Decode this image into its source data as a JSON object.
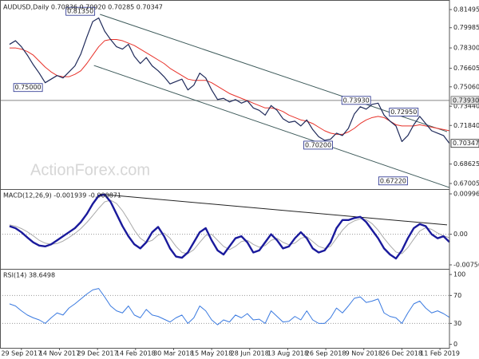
{
  "chart_data": [
    {
      "type": "line",
      "title": "AUDUSD,Daily  0.70836 0.70920 0.70285 0.70347",
      "watermark": "ActionForex.com",
      "x": [
        0,
        5,
        10,
        15,
        20,
        25,
        30,
        35,
        40,
        45,
        50,
        55,
        60,
        65,
        70,
        75,
        80,
        85,
        90,
        95,
        100,
        105,
        110,
        115,
        120,
        125,
        130,
        135,
        140,
        145,
        150,
        155,
        160,
        165,
        170,
        175,
        180,
        185,
        190,
        195,
        200,
        205,
        210,
        215,
        220,
        225,
        230,
        235,
        240,
        245,
        250,
        255,
        260,
        265,
        270,
        275,
        280,
        285,
        290,
        295,
        300,
        305,
        310,
        315,
        320,
        325,
        330,
        335,
        340,
        345,
        350,
        355,
        360,
        365,
        370
      ],
      "xlim": [
        -8,
        370
      ],
      "ylim": [
        0.6654,
        0.8216
      ],
      "yticks": [
        0.81495,
        0.79985,
        {
          "value": 0.783,
          "label": "0.78300"
        },
        0.76605,
        {
          "value": 0.7506,
          "label": "0.75060"
        },
        {
          "value": 0.7344,
          "label": "0.73440"
        },
        {
          "value": 0.7184,
          "label": "0.71840"
        },
        0.68625,
        0.67005
      ],
      "series": [
        {
          "name": "AUDUSD",
          "color": "#1f2a5a",
          "width": 1.2,
          "values": [
            0.786,
            0.789,
            0.784,
            0.777,
            0.769,
            0.762,
            0.754,
            0.757,
            0.76,
            0.758,
            0.763,
            0.768,
            0.778,
            0.792,
            0.805,
            0.808,
            0.797,
            0.79,
            0.784,
            0.782,
            0.786,
            0.776,
            0.77,
            0.775,
            0.768,
            0.764,
            0.759,
            0.753,
            0.755,
            0.757,
            0.748,
            0.752,
            0.762,
            0.758,
            0.748,
            0.74,
            0.741,
            0.738,
            0.74,
            0.737,
            0.739,
            0.733,
            0.731,
            0.727,
            0.735,
            0.731,
            0.724,
            0.721,
            0.722,
            0.718,
            0.723,
            0.715,
            0.709,
            0.706,
            0.707,
            0.712,
            0.71,
            0.716,
            0.728,
            0.734,
            0.732,
            0.736,
            0.737,
            0.727,
            0.722,
            0.718,
            0.705,
            0.71,
            0.719,
            0.726,
            0.72,
            0.714,
            0.712,
            0.71,
            0.70347
          ]
        },
        {
          "name": "MA",
          "color": "#e8322a",
          "width": 1,
          "values": [
            0.783,
            0.783,
            0.782,
            0.78,
            0.777,
            0.772,
            0.767,
            0.763,
            0.76,
            0.759,
            0.759,
            0.761,
            0.764,
            0.77,
            0.777,
            0.784,
            0.789,
            0.79,
            0.79,
            0.789,
            0.787,
            0.785,
            0.782,
            0.779,
            0.776,
            0.773,
            0.77,
            0.766,
            0.763,
            0.76,
            0.757,
            0.756,
            0.756,
            0.756,
            0.754,
            0.751,
            0.748,
            0.745,
            0.743,
            0.741,
            0.739,
            0.737,
            0.735,
            0.733,
            0.733,
            0.732,
            0.73,
            0.727,
            0.725,
            0.723,
            0.722,
            0.72,
            0.717,
            0.714,
            0.712,
            0.711,
            0.711,
            0.713,
            0.716,
            0.72,
            0.723,
            0.725,
            0.726,
            0.725,
            0.722,
            0.719,
            0.718,
            0.718,
            0.718,
            0.719,
            0.718,
            0.717,
            0.716,
            0.715,
            0.714
          ]
        }
      ],
      "trendlines": [
        {
          "x": [
            76,
            368
          ],
          "y": [
            0.811,
            0.7132
          ],
          "color": "#3d5a5a"
        },
        {
          "x": [
            71,
            370
          ],
          "y": [
            0.7684,
            0.6667
          ],
          "color": "#3d5a5a"
        }
      ],
      "hline": {
        "value": 0.7393,
        "label": "0.73930",
        "color": "#888888"
      },
      "last_label": {
        "value": 0.70347,
        "label": "0.70347"
      },
      "annotations": [
        {
          "x": 73,
          "value": 0.8135,
          "label": "0.81350"
        },
        {
          "x": 29,
          "value": 0.75,
          "label": "0.75000"
        },
        {
          "x": 305,
          "value": 0.7393,
          "label": "0.73930"
        },
        {
          "x": 345,
          "value": 0.7295,
          "label": "0.72950"
        },
        {
          "x": 273,
          "value": 0.702,
          "label": "0.70200"
        },
        {
          "x": 336,
          "value": 0.6722,
          "label": "0.67220"
        }
      ]
    },
    {
      "type": "line",
      "title": "MACD(12,26,9) -0.001939 -0.000871",
      "x": [
        0,
        5,
        10,
        15,
        20,
        25,
        30,
        35,
        40,
        45,
        50,
        55,
        60,
        65,
        70,
        75,
        80,
        85,
        90,
        95,
        100,
        105,
        110,
        115,
        120,
        125,
        130,
        135,
        140,
        145,
        150,
        155,
        160,
        165,
        170,
        175,
        180,
        185,
        190,
        195,
        200,
        205,
        210,
        215,
        220,
        225,
        230,
        235,
        240,
        245,
        250,
        255,
        260,
        265,
        270,
        275,
        280,
        285,
        290,
        295,
        300,
        305,
        310,
        315,
        320,
        325,
        330,
        335,
        340,
        345,
        350,
        355,
        360,
        365,
        370
      ],
      "xlim": [
        -8,
        370
      ],
      "ylim": [
        -0.00835,
        0.01095
      ],
      "yticks": [
        0.009964,
        {
          "value": 0,
          "label": "0.00"
        },
        -0.00756
      ],
      "levels": [
        0
      ],
      "series": [
        {
          "name": "MACD",
          "color": "#1a1a9c",
          "width": 2.4,
          "values": [
            0.002,
            0.0015,
            0.0005,
            -0.0008,
            -0.002,
            -0.0028,
            -0.003,
            -0.0025,
            -0.0015,
            -0.0005,
            0.0005,
            0.0015,
            0.003,
            0.005,
            0.0075,
            0.0095,
            0.0098,
            0.008,
            0.005,
            0.002,
            -0.0005,
            -0.0025,
            -0.0035,
            -0.002,
            0.0005,
            0.0018,
            -0.0005,
            -0.0035,
            -0.0055,
            -0.0058,
            -0.0045,
            -0.002,
            0.0005,
            0.0015,
            -0.0015,
            -0.004,
            -0.005,
            -0.003,
            -0.001,
            -0.0005,
            -0.002,
            -0.0045,
            -0.004,
            -0.002,
            0,
            -0.0015,
            -0.0035,
            -0.003,
            -0.001,
            0.0005,
            -0.001,
            -0.0035,
            -0.0045,
            -0.004,
            -0.002,
            0.0015,
            0.0035,
            0.0035,
            0.004,
            0.0043,
            0.003,
            0.001,
            -0.001,
            -0.0035,
            -0.005,
            -0.006,
            -0.004,
            -0.001,
            0.0015,
            0.0025,
            0.002,
            0,
            -0.001,
            -0.0005,
            -0.001939
          ]
        },
        {
          "name": "Signal",
          "color": "#aaaaaa",
          "width": 1,
          "values": [
            0.0023,
            0.002,
            0.0014,
            0.0006,
            -0.0004,
            -0.0015,
            -0.0022,
            -0.0025,
            -0.0023,
            -0.0017,
            -0.0008,
            0.0002,
            0.0014,
            0.0029,
            0.0046,
            0.0064,
            0.008,
            0.0084,
            0.0076,
            0.0058,
            0.0035,
            0.001,
            -0.001,
            -0.002,
            -0.0015,
            -0.0002,
            0.0003,
            -0.001,
            -0.003,
            -0.0045,
            -0.0048,
            -0.0038,
            -0.002,
            -0.0003,
            0,
            -0.0015,
            -0.003,
            -0.0038,
            -0.003,
            -0.0018,
            -0.0015,
            -0.0025,
            -0.0032,
            -0.0028,
            -0.0015,
            -0.001,
            -0.002,
            -0.0026,
            -0.0022,
            -0.001,
            -0.0006,
            -0.0018,
            -0.003,
            -0.0035,
            -0.003,
            -0.001,
            0.001,
            0.0025,
            0.0033,
            0.0038,
            0.0036,
            0.0026,
            0.001,
            -0.001,
            -0.0028,
            -0.0044,
            -0.0048,
            -0.0033,
            -0.0012,
            0.0008,
            0.0016,
            0.0012,
            0.0003,
            -0.0004,
            -0.000871
          ]
        }
      ],
      "trendlines": [
        {
          "x": [
            76,
            368
          ],
          "y": [
            0.0099,
            0.0023
          ],
          "color": "#222222"
        }
      ]
    },
    {
      "type": "line",
      "title": "RSI(14) 38.6498",
      "x": [
        0,
        5,
        10,
        15,
        20,
        25,
        30,
        35,
        40,
        45,
        50,
        55,
        60,
        65,
        70,
        75,
        80,
        85,
        90,
        95,
        100,
        105,
        110,
        115,
        120,
        125,
        130,
        135,
        140,
        145,
        150,
        155,
        160,
        165,
        170,
        175,
        180,
        185,
        190,
        195,
        200,
        205,
        210,
        215,
        220,
        225,
        230,
        235,
        240,
        245,
        250,
        255,
        260,
        265,
        270,
        275,
        280,
        285,
        290,
        295,
        300,
        305,
        310,
        315,
        320,
        325,
        330,
        335,
        340,
        345,
        350,
        355,
        360,
        365,
        370
      ],
      "xlim": [
        -8,
        370
      ],
      "ylim": [
        -5,
        107
      ],
      "yticks": [
        100,
        70,
        30,
        0
      ],
      "levels": [
        70,
        30
      ],
      "series": [
        {
          "name": "RSI",
          "color": "#3a7ae0",
          "width": 1,
          "values": [
            58,
            55,
            48,
            42,
            38,
            35,
            30,
            38,
            45,
            42,
            52,
            58,
            65,
            72,
            78,
            80,
            68,
            55,
            48,
            45,
            55,
            42,
            38,
            50,
            42,
            40,
            36,
            32,
            38,
            42,
            30,
            38,
            55,
            48,
            35,
            28,
            35,
            32,
            42,
            38,
            44,
            35,
            36,
            30,
            48,
            40,
            32,
            33,
            40,
            35,
            48,
            35,
            30,
            30,
            38,
            52,
            45,
            55,
            66,
            68,
            60,
            62,
            65,
            45,
            40,
            38,
            30,
            45,
            58,
            62,
            52,
            45,
            48,
            44,
            38.6498
          ]
        }
      ],
      "xticks": [
        {
          "value": 10,
          "label": "29 Sep 2017"
        },
        {
          "value": 42,
          "label": "14 Nov 2017"
        },
        {
          "value": 74,
          "label": "29 Dec 2017"
        },
        {
          "value": 106,
          "label": "14 Feb 2018"
        },
        {
          "value": 138,
          "label": "30 Mar 2018"
        },
        {
          "value": 170,
          "label": "15 May 2018"
        },
        {
          "value": 202,
          "label": "28 Jun 2018"
        },
        {
          "value": 234,
          "label": "13 Aug 2018"
        },
        {
          "value": 266,
          "label": "26 Sep 2018"
        },
        {
          "value": 298,
          "label": "9 Nov 2018"
        },
        {
          "value": 330,
          "label": "26 Dec 2018"
        },
        {
          "value": 362,
          "label": "11 Feb 2019"
        }
      ]
    }
  ]
}
